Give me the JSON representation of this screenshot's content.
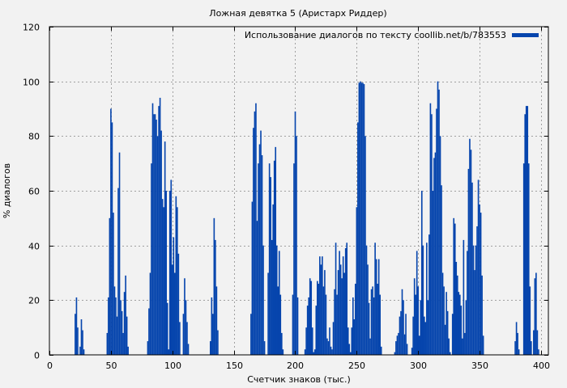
{
  "chart_data": {
    "type": "bar",
    "title": "Ложная девятка 5 (Аристарх Риддер)",
    "xlabel": "Счетчик знаков (тыс.)",
    "ylabel": "% диалогов",
    "xlim": [
      0,
      406
    ],
    "ylim": [
      0,
      120
    ],
    "xticks": [
      0,
      50,
      100,
      150,
      200,
      250,
      300,
      350,
      400
    ],
    "yticks": [
      0,
      20,
      40,
      60,
      80,
      100,
      120
    ],
    "grid": true,
    "legend_position": "top-right",
    "series": [
      {
        "name": "Использование диалогов по тексту coollib.net/b/783553",
        "color": "#0645ad",
        "points": [
          [
            21,
            15
          ],
          [
            22,
            21
          ],
          [
            23,
            10
          ],
          [
            25,
            3
          ],
          [
            26,
            13
          ],
          [
            27,
            9
          ],
          [
            28,
            2
          ],
          [
            47,
            8
          ],
          [
            48,
            21
          ],
          [
            49,
            50
          ],
          [
            50,
            90
          ],
          [
            51,
            85
          ],
          [
            52,
            52
          ],
          [
            53,
            25
          ],
          [
            54,
            21
          ],
          [
            55,
            14
          ],
          [
            56,
            61
          ],
          [
            57,
            74
          ],
          [
            58,
            20
          ],
          [
            59,
            16
          ],
          [
            60,
            8
          ],
          [
            61,
            23
          ],
          [
            62,
            29
          ],
          [
            63,
            14
          ],
          [
            64,
            3
          ],
          [
            80,
            5
          ],
          [
            81,
            17
          ],
          [
            82,
            30
          ],
          [
            83,
            70
          ],
          [
            84,
            92
          ],
          [
            85,
            88
          ],
          [
            86,
            88
          ],
          [
            87,
            86
          ],
          [
            88,
            80
          ],
          [
            89,
            91
          ],
          [
            90,
            94
          ],
          [
            91,
            82
          ],
          [
            92,
            57
          ],
          [
            93,
            54
          ],
          [
            94,
            78
          ],
          [
            95,
            60
          ],
          [
            96,
            19
          ],
          [
            97,
            2
          ],
          [
            98,
            60
          ],
          [
            99,
            64
          ],
          [
            100,
            33
          ],
          [
            101,
            43
          ],
          [
            102,
            30
          ],
          [
            103,
            58
          ],
          [
            104,
            54
          ],
          [
            105,
            37
          ],
          [
            106,
            12
          ],
          [
            109,
            15
          ],
          [
            110,
            28
          ],
          [
            111,
            20
          ],
          [
            112,
            12
          ],
          [
            113,
            4
          ],
          [
            131,
            5
          ],
          [
            132,
            21
          ],
          [
            133,
            15
          ],
          [
            134,
            50
          ],
          [
            135,
            42
          ],
          [
            136,
            25
          ],
          [
            137,
            9
          ],
          [
            164,
            15
          ],
          [
            165,
            56
          ],
          [
            166,
            83
          ],
          [
            167,
            89
          ],
          [
            168,
            92
          ],
          [
            169,
            49
          ],
          [
            170,
            70
          ],
          [
            171,
            77
          ],
          [
            172,
            82
          ],
          [
            173,
            73
          ],
          [
            174,
            40
          ],
          [
            175,
            5
          ],
          [
            178,
            30
          ],
          [
            179,
            70
          ],
          [
            180,
            65
          ],
          [
            181,
            42
          ],
          [
            182,
            55
          ],
          [
            183,
            71
          ],
          [
            184,
            76
          ],
          [
            185,
            40
          ],
          [
            186,
            25
          ],
          [
            187,
            38
          ],
          [
            188,
            22
          ],
          [
            189,
            8
          ],
          [
            190,
            2
          ],
          [
            198,
            22
          ],
          [
            199,
            70
          ],
          [
            200,
            89
          ],
          [
            201,
            80
          ],
          [
            202,
            21
          ],
          [
            208,
            2
          ],
          [
            209,
            10
          ],
          [
            210,
            18
          ],
          [
            211,
            21
          ],
          [
            212,
            28
          ],
          [
            213,
            27
          ],
          [
            214,
            10
          ],
          [
            215,
            1
          ],
          [
            216,
            2
          ],
          [
            217,
            18
          ],
          [
            218,
            27
          ],
          [
            219,
            26
          ],
          [
            220,
            36
          ],
          [
            221,
            33
          ],
          [
            222,
            36
          ],
          [
            223,
            25
          ],
          [
            224,
            31
          ],
          [
            225,
            22
          ],
          [
            226,
            6
          ],
          [
            227,
            5
          ],
          [
            228,
            10
          ],
          [
            229,
            3
          ],
          [
            230,
            2
          ],
          [
            231,
            12
          ],
          [
            232,
            24
          ],
          [
            233,
            41
          ],
          [
            234,
            22
          ],
          [
            235,
            31
          ],
          [
            236,
            38
          ],
          [
            237,
            33
          ],
          [
            238,
            28
          ],
          [
            239,
            36
          ],
          [
            240,
            30
          ],
          [
            241,
            39
          ],
          [
            242,
            41
          ],
          [
            243,
            10
          ],
          [
            244,
            4
          ],
          [
            245,
            1
          ],
          [
            246,
            10
          ],
          [
            247,
            21
          ],
          [
            248,
            13
          ],
          [
            249,
            26
          ],
          [
            250,
            54
          ],
          [
            251,
            85
          ],
          [
            252,
            99.5
          ],
          [
            253,
            100
          ],
          [
            254,
            99.5
          ],
          [
            255,
            99.5
          ],
          [
            256,
            99
          ],
          [
            257,
            80
          ],
          [
            258,
            40
          ],
          [
            259,
            33
          ],
          [
            260,
            19
          ],
          [
            261,
            6
          ],
          [
            262,
            24
          ],
          [
            263,
            25
          ],
          [
            264,
            21
          ],
          [
            265,
            41
          ],
          [
            266,
            35
          ],
          [
            267,
            26
          ],
          [
            268,
            35
          ],
          [
            269,
            22
          ],
          [
            270,
            3
          ],
          [
            281,
            1
          ],
          [
            282,
            5
          ],
          [
            283,
            7
          ],
          [
            284,
            8
          ],
          [
            285,
            14
          ],
          [
            286,
            16
          ],
          [
            287,
            24
          ],
          [
            288,
            20
          ],
          [
            289,
            7.5
          ],
          [
            290,
            15
          ],
          [
            291,
            4
          ],
          [
            295,
            2.6
          ],
          [
            296,
            14
          ],
          [
            297,
            28
          ],
          [
            298,
            22
          ],
          [
            299,
            38
          ],
          [
            300,
            25
          ],
          [
            301,
            7
          ],
          [
            302,
            20
          ],
          [
            303,
            60
          ],
          [
            304,
            40
          ],
          [
            305,
            14
          ],
          [
            306,
            12
          ],
          [
            307,
            41
          ],
          [
            308,
            20
          ],
          [
            309,
            44
          ],
          [
            310,
            92
          ],
          [
            311,
            88
          ],
          [
            312,
            60
          ],
          [
            313,
            72
          ],
          [
            314,
            74
          ],
          [
            315,
            90
          ],
          [
            316,
            100
          ],
          [
            317,
            97
          ],
          [
            318,
            80
          ],
          [
            319,
            62
          ],
          [
            320,
            30
          ],
          [
            321,
            25
          ],
          [
            322,
            11
          ],
          [
            323,
            23
          ],
          [
            324,
            16
          ],
          [
            325,
            6
          ],
          [
            326,
            1
          ],
          [
            328,
            15
          ],
          [
            329,
            50
          ],
          [
            330,
            48
          ],
          [
            331,
            34
          ],
          [
            332,
            29
          ],
          [
            333,
            23
          ],
          [
            334,
            22
          ],
          [
            335,
            18
          ],
          [
            336,
            6
          ],
          [
            337,
            42
          ],
          [
            338,
            8
          ],
          [
            339,
            20
          ],
          [
            340,
            38
          ],
          [
            341,
            68
          ],
          [
            342,
            79
          ],
          [
            343,
            75
          ],
          [
            344,
            63
          ],
          [
            345,
            40
          ],
          [
            346,
            31
          ],
          [
            347,
            40
          ],
          [
            348,
            47
          ],
          [
            349,
            64
          ],
          [
            350,
            55
          ],
          [
            351,
            52
          ],
          [
            352,
            29
          ],
          [
            353,
            7
          ],
          [
            379,
            5
          ],
          [
            380,
            12
          ],
          [
            381,
            8
          ],
          [
            382,
            2
          ],
          [
            386,
            70
          ],
          [
            387,
            88
          ],
          [
            388,
            91
          ],
          [
            389,
            91
          ],
          [
            390,
            70
          ],
          [
            391,
            25
          ],
          [
            392,
            5
          ],
          [
            394,
            9
          ],
          [
            395,
            28
          ],
          [
            396,
            30
          ],
          [
            397,
            9
          ],
          [
            398,
            2
          ]
        ]
      }
    ]
  }
}
